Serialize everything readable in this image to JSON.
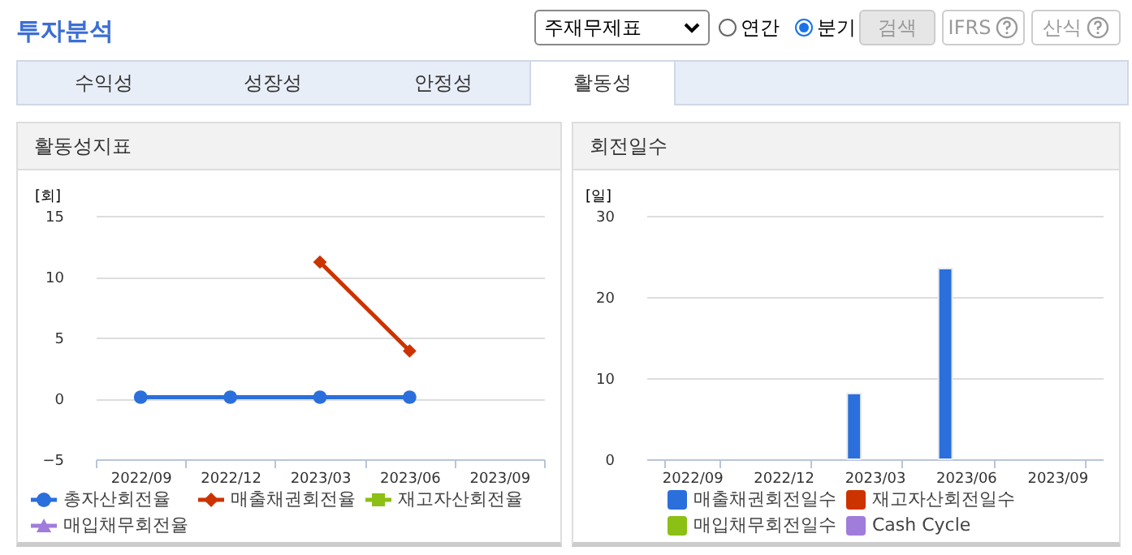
{
  "chart_data": [
    {
      "type": "other",
      "title": "투자분석",
      "annotations": [
        "주재무제표",
        "연간",
        "분기",
        "검색",
        "IFRS",
        "산식",
        "수익성",
        "성장성",
        "안정성",
        "활동성"
      ]
    },
    {
      "type": "line",
      "title": "활동성지표",
      "ylabel": "[회]",
      "categories": [
        "2022/09",
        "2022/12",
        "2023/03",
        "2023/06",
        "2023/09"
      ],
      "ylim": [
        -5,
        15
      ],
      "yticks": [
        -5,
        0,
        5,
        10,
        15
      ],
      "grid": "y",
      "legend": "bottom",
      "series": [
        {
          "name": "총자산회전율",
          "color": "#2a6fdb",
          "marker": "circle",
          "values": [
            0.1,
            0.1,
            0.1,
            0.1,
            null
          ]
        },
        {
          "name": "매출채권회전율",
          "color": "#cc3300",
          "marker": "diamond",
          "values": [
            null,
            null,
            11.2,
            3.9,
            null
          ]
        },
        {
          "name": "재고자산회전율",
          "color": "#8cc014",
          "marker": "square",
          "values": [
            null,
            null,
            null,
            null,
            null
          ]
        },
        {
          "name": "매입채무회전율",
          "color": "#a07cdb",
          "marker": "triangle",
          "values": [
            null,
            null,
            null,
            null,
            null
          ]
        }
      ]
    },
    {
      "type": "bar",
      "title": "회전일수",
      "ylabel": "[일]",
      "categories": [
        "2022/09",
        "2022/12",
        "2023/03",
        "2023/06",
        "2023/09"
      ],
      "ylim": [
        0,
        30
      ],
      "yticks": [
        0,
        10,
        20,
        30
      ],
      "grid": "y",
      "legend": "bottom",
      "series": [
        {
          "name": "매출채권회전일수",
          "color": "#2a6fdb",
          "values": [
            null,
            null,
            8.1,
            23.5,
            null
          ]
        },
        {
          "name": "재고자산회전일수",
          "color": "#cc3300",
          "values": [
            null,
            null,
            null,
            null,
            null
          ]
        },
        {
          "name": "매입채무회전일수",
          "color": "#8cc014",
          "values": [
            null,
            null,
            null,
            null,
            null
          ]
        },
        {
          "name": "Cash Cycle",
          "color": "#a07cdb",
          "values": [
            null,
            null,
            null,
            null,
            null
          ]
        }
      ]
    }
  ]
}
